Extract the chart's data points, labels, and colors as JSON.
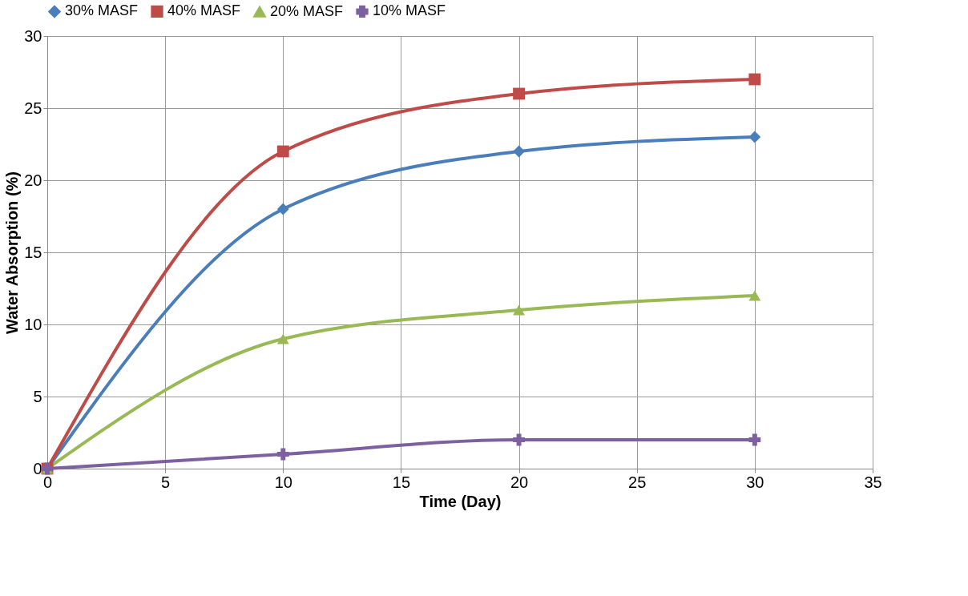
{
  "chart_data": {
    "type": "line",
    "xlabel": "Time (Day)",
    "ylabel": "Water Absorption (%)",
    "x": [
      0,
      10,
      20,
      30
    ],
    "series": [
      {
        "name": "30% MASF",
        "color": "#4a7ebb",
        "marker": "diamond",
        "values": [
          0,
          18,
          22,
          23
        ]
      },
      {
        "name": "40% MASF",
        "color": "#be4b48",
        "marker": "square",
        "values": [
          0,
          22,
          26,
          27
        ]
      },
      {
        "name": "20% MASF",
        "color": "#98b954",
        "marker": "triangle",
        "values": [
          0,
          9,
          11,
          12
        ]
      },
      {
        "name": "10% MASF",
        "color": "#7d60a0",
        "marker": "cross",
        "values": [
          0,
          1,
          2,
          2
        ]
      }
    ],
    "xlim": [
      0,
      35
    ],
    "xticks": [
      0,
      5,
      10,
      15,
      20,
      25,
      30,
      35
    ],
    "ylim": [
      0,
      30
    ],
    "yticks": [
      0,
      5,
      10,
      15,
      20,
      25,
      30
    ],
    "grid": true,
    "legend": "top",
    "line_style": "solid"
  }
}
